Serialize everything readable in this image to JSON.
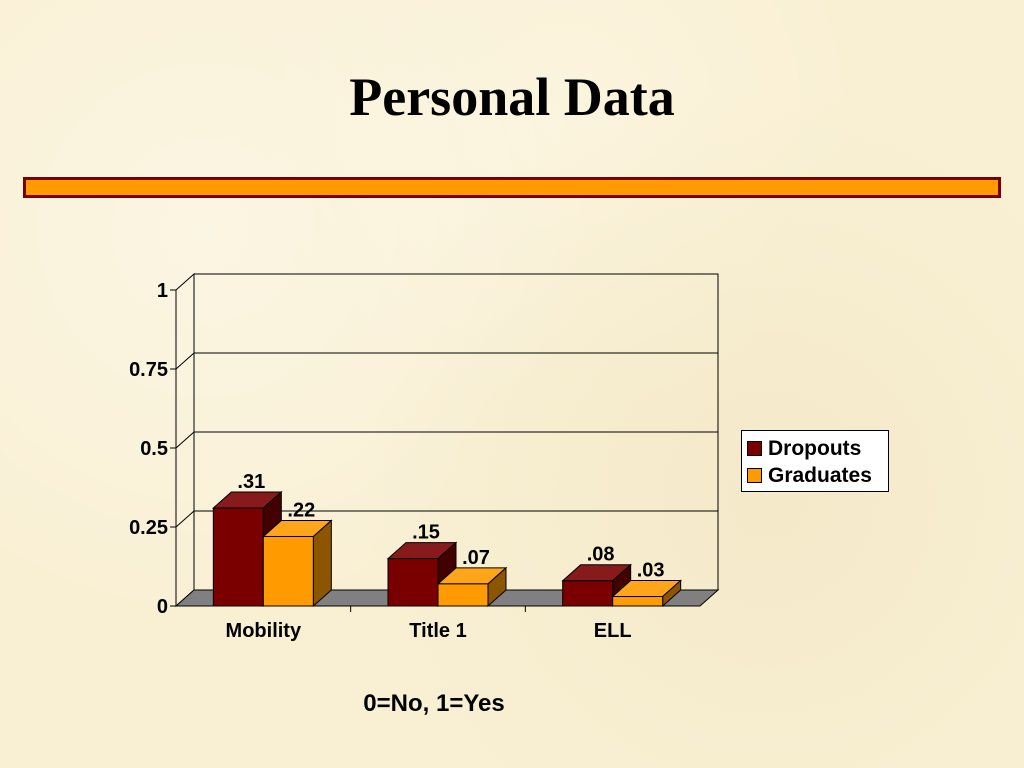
{
  "slide": {
    "title": "Personal Data",
    "footnote": "0=No, 1=Yes"
  },
  "colors": {
    "dropouts": "#7a0000",
    "graduates": "#ff9b00",
    "rule_border": "#7a0000",
    "rule_fill": "#ff9b00",
    "floor": "#808080"
  },
  "chart_data": {
    "type": "bar",
    "categories": [
      "Mobility",
      "Title 1",
      "ELL"
    ],
    "series": [
      {
        "name": "Dropouts",
        "values": [
          0.31,
          0.15,
          0.08
        ],
        "labels": [
          ".31",
          ".15",
          ".08"
        ]
      },
      {
        "name": "Graduates",
        "values": [
          0.22,
          0.07,
          0.03
        ],
        "labels": [
          ".22",
          ".07",
          ".03"
        ]
      }
    ],
    "y_ticks": [
      "0",
      "0.25",
      "0.5",
      "0.75",
      "1"
    ],
    "ylim": [
      0,
      1
    ],
    "grid": true,
    "legend_position": "right",
    "style": "3d-clustered-column"
  }
}
